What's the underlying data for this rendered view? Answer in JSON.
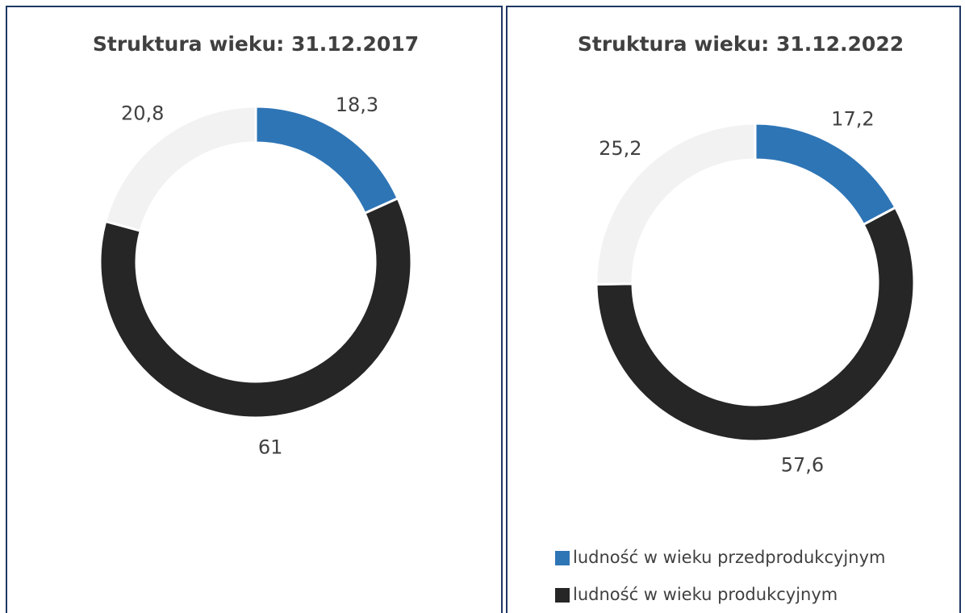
{
  "chart_data": [
    {
      "type": "pie",
      "title": "Struktura wieku: 31.12.2017",
      "values": [
        18.3,
        61,
        20.8
      ],
      "value_labels": [
        "18,3",
        "61",
        "20,8"
      ],
      "colors": [
        "#2e75b6",
        "#262626",
        "#f2f2f2"
      ]
    },
    {
      "type": "pie",
      "title": "Struktura wieku: 31.12.2022",
      "categories": [
        "ludność w wieku przedprodukcyjnym",
        "ludność w wieku produkcyjnym",
        null
      ],
      "values": [
        17.2,
        57.6,
        25.2
      ],
      "value_labels": [
        "17,2",
        "57,6",
        "25,2"
      ],
      "colors": [
        "#2e75b6",
        "#262626",
        "#f2f2f2"
      ],
      "legend": "bottom-left"
    }
  ]
}
